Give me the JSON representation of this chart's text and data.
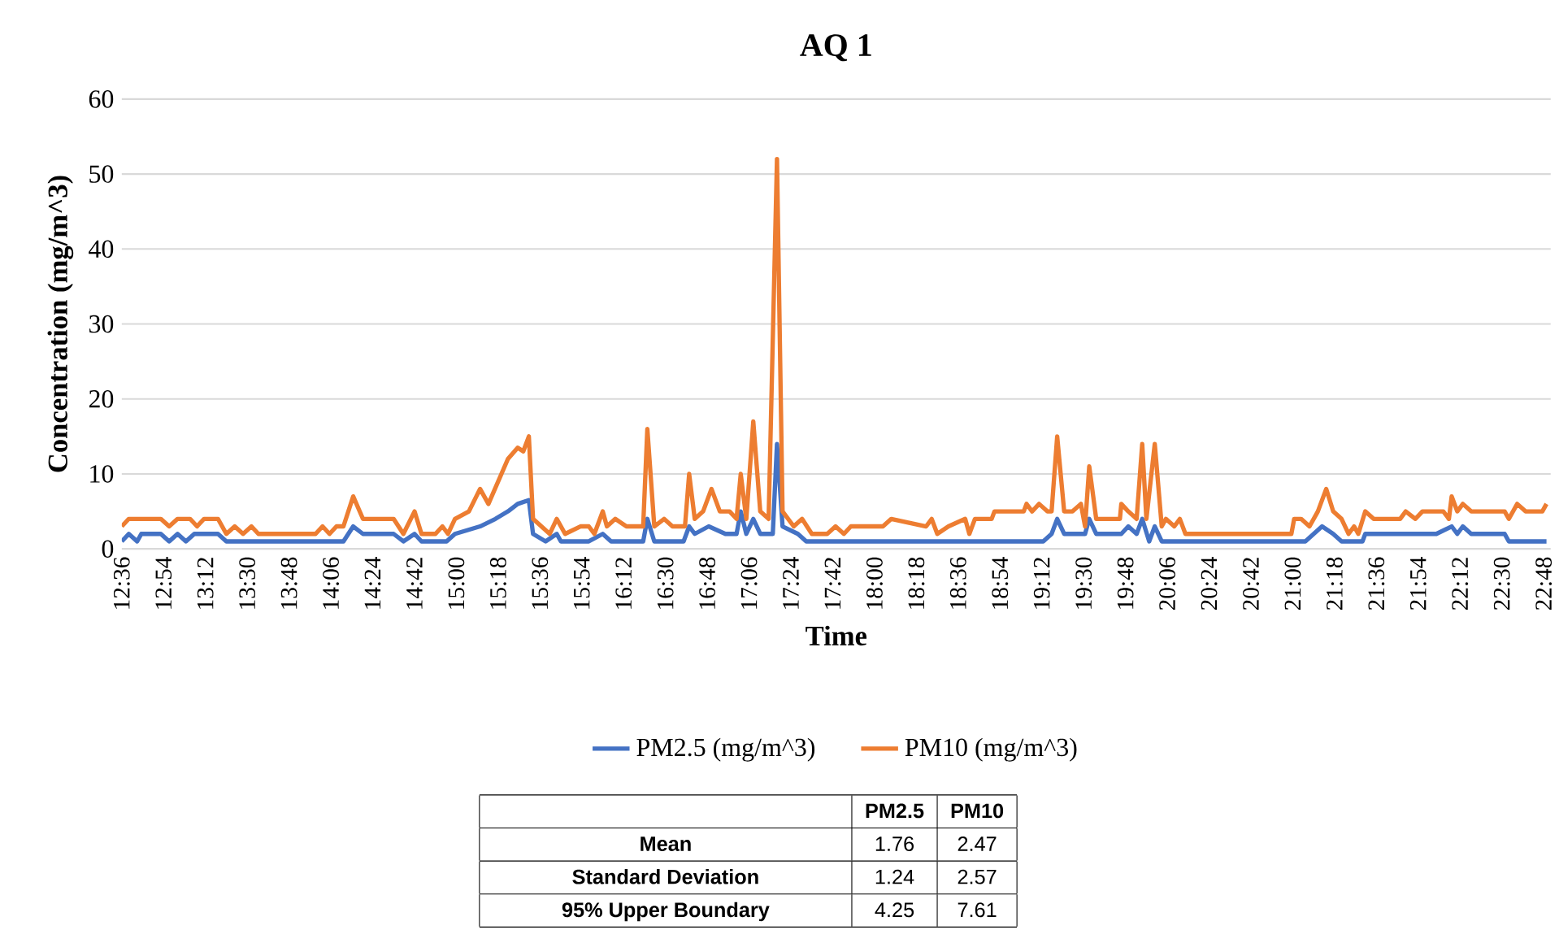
{
  "chart_data": {
    "type": "line",
    "title": "AQ 1",
    "xlabel": "Time",
    "ylabel": "Concentration (mg/m^3)",
    "xlim": [
      12.6,
      22.85
    ],
    "ylim": [
      0,
      60
    ],
    "yticks": [
      0,
      10,
      20,
      30,
      40,
      50,
      60
    ],
    "xticks": [
      {
        "value": 12.6,
        "label": "12:36"
      },
      {
        "value": 12.9,
        "label": "12:54"
      },
      {
        "value": 13.2,
        "label": "13:12"
      },
      {
        "value": 13.5,
        "label": "13:30"
      },
      {
        "value": 13.8,
        "label": "13:48"
      },
      {
        "value": 14.1,
        "label": "14:06"
      },
      {
        "value": 14.4,
        "label": "14:24"
      },
      {
        "value": 14.7,
        "label": "14:42"
      },
      {
        "value": 15.0,
        "label": "15:00"
      },
      {
        "value": 15.3,
        "label": "15:18"
      },
      {
        "value": 15.6,
        "label": "15:36"
      },
      {
        "value": 15.9,
        "label": "15:54"
      },
      {
        "value": 16.2,
        "label": "16:12"
      },
      {
        "value": 16.5,
        "label": "16:30"
      },
      {
        "value": 16.8,
        "label": "16:48"
      },
      {
        "value": 17.1,
        "label": "17:06"
      },
      {
        "value": 17.4,
        "label": "17:24"
      },
      {
        "value": 17.7,
        "label": "17:42"
      },
      {
        "value": 18.0,
        "label": "18:00"
      },
      {
        "value": 18.3,
        "label": "18:18"
      },
      {
        "value": 18.6,
        "label": "18:36"
      },
      {
        "value": 18.9,
        "label": "18:54"
      },
      {
        "value": 19.2,
        "label": "19:12"
      },
      {
        "value": 19.5,
        "label": "19:30"
      },
      {
        "value": 19.8,
        "label": "19:48"
      },
      {
        "value": 20.1,
        "label": "20:06"
      },
      {
        "value": 20.4,
        "label": "20:24"
      },
      {
        "value": 20.7,
        "label": "20:42"
      },
      {
        "value": 21.0,
        "label": "21:00"
      },
      {
        "value": 21.3,
        "label": "21:18"
      },
      {
        "value": 21.6,
        "label": "21:36"
      },
      {
        "value": 21.9,
        "label": "21:54"
      },
      {
        "value": 22.2,
        "label": "22:12"
      },
      {
        "value": 22.5,
        "label": "22:30"
      },
      {
        "value": 22.8,
        "label": "22:48"
      }
    ],
    "grid": "y",
    "legend": "bottom",
    "series": [
      {
        "name": "PM2.5 (mg/m^3)",
        "color": "#4472c4",
        "x": [
          12.6,
          12.65,
          12.71,
          12.74,
          12.88,
          12.94,
          13.0,
          13.06,
          13.12,
          13.29,
          13.35,
          14.19,
          14.26,
          14.33,
          14.55,
          14.62,
          14.7,
          14.75,
          14.93,
          14.99,
          15.17,
          15.28,
          15.37,
          15.44,
          15.52,
          15.55,
          15.64,
          15.72,
          15.75,
          15.95,
          16.05,
          16.11,
          16.34,
          16.37,
          16.42,
          16.63,
          16.67,
          16.71,
          16.81,
          16.93,
          17.01,
          17.04,
          17.08,
          17.13,
          17.18,
          17.27,
          17.3,
          17.34,
          17.45,
          17.51,
          19.21,
          19.27,
          19.31,
          19.36,
          19.51,
          19.54,
          19.59,
          19.77,
          19.82,
          19.88,
          19.92,
          19.97,
          20.01,
          20.06,
          21.09,
          21.21,
          21.29,
          21.35,
          21.5,
          21.52,
          22.03,
          22.14,
          22.18,
          22.22,
          22.28,
          22.52,
          22.55,
          22.82
        ],
        "values": [
          1,
          2,
          1,
          2,
          2,
          1,
          2,
          1,
          2,
          2,
          1,
          1,
          3,
          2,
          2,
          1,
          2,
          1,
          1,
          2,
          3,
          4,
          5,
          6,
          6.5,
          2,
          1,
          2,
          1,
          1,
          2,
          1,
          1,
          4,
          1,
          1,
          3,
          2,
          3,
          2,
          2,
          5,
          2,
          4,
          2,
          2,
          14,
          3,
          2,
          1,
          1,
          2,
          4,
          2,
          2,
          4,
          2,
          2,
          3,
          2,
          4,
          1,
          3,
          1,
          1,
          3,
          2,
          1,
          1,
          2,
          2,
          3,
          2,
          3,
          2,
          2,
          1,
          1
        ]
      },
      {
        "name": "PM10 (mg/m^3)",
        "color": "#ed7d31",
        "x": [
          12.6,
          12.65,
          12.88,
          12.94,
          13.0,
          13.09,
          13.14,
          13.19,
          13.29,
          13.35,
          13.41,
          13.47,
          13.53,
          13.58,
          13.99,
          14.04,
          14.09,
          14.14,
          14.19,
          14.26,
          14.33,
          14.55,
          14.62,
          14.7,
          14.75,
          14.85,
          14.9,
          14.94,
          14.99,
          15.09,
          15.17,
          15.23,
          15.37,
          15.44,
          15.48,
          15.52,
          15.55,
          15.67,
          15.72,
          15.78,
          15.89,
          15.95,
          15.99,
          16.05,
          16.08,
          16.14,
          16.22,
          16.34,
          16.37,
          16.42,
          16.49,
          16.55,
          16.64,
          16.67,
          16.71,
          16.77,
          16.83,
          16.89,
          16.96,
          17.01,
          17.04,
          17.08,
          17.13,
          17.18,
          17.24,
          17.3,
          17.34,
          17.42,
          17.48,
          17.55,
          17.66,
          17.72,
          17.78,
          17.83,
          18.06,
          18.12,
          18.37,
          18.41,
          18.45,
          18.53,
          18.65,
          18.68,
          18.72,
          18.84,
          18.86,
          19.07,
          19.09,
          19.13,
          19.18,
          19.24,
          19.27,
          19.31,
          19.36,
          19.42,
          19.48,
          19.51,
          19.54,
          19.59,
          19.76,
          19.77,
          19.82,
          19.88,
          19.92,
          19.95,
          20.01,
          20.06,
          20.09,
          20.15,
          20.19,
          20.23,
          20.99,
          21.01,
          21.06,
          21.12,
          21.18,
          21.24,
          21.29,
          21.35,
          21.4,
          21.44,
          21.47,
          21.52,
          21.58,
          21.77,
          21.81,
          21.88,
          21.93,
          22.08,
          22.12,
          22.14,
          22.18,
          22.22,
          22.28,
          22.52,
          22.55,
          22.61,
          22.67,
          22.79,
          22.82
        ],
        "values": [
          3,
          4,
          4,
          3,
          4,
          4,
          3,
          4,
          4,
          2,
          3,
          2,
          3,
          2,
          2,
          3,
          2,
          3,
          3,
          7,
          4,
          4,
          2,
          5,
          2,
          2,
          3,
          2,
          4,
          5,
          8,
          6,
          12,
          13.5,
          13,
          15,
          4,
          2,
          4,
          2,
          3,
          3,
          2,
          5,
          3,
          4,
          3,
          3,
          16,
          3,
          4,
          3,
          3,
          10,
          4,
          5,
          8,
          5,
          5,
          4,
          10,
          4,
          17,
          5,
          4,
          52,
          5,
          3,
          4,
          2,
          2,
          3,
          2,
          3,
          3,
          4,
          3,
          4,
          2,
          3,
          4,
          2,
          4,
          4,
          5,
          5,
          6,
          5,
          6,
          5,
          5,
          15,
          5,
          5,
          6,
          3,
          11,
          4,
          4,
          6,
          5,
          4,
          14,
          4,
          14,
          3,
          4,
          3,
          4,
          2,
          2,
          4,
          4,
          3,
          5,
          8,
          5,
          4,
          2,
          3,
          2,
          5,
          4,
          4,
          5,
          4,
          5,
          5,
          4,
          7,
          5,
          6,
          5,
          5,
          4,
          6,
          5,
          5,
          6
        ]
      }
    ],
    "annotations": [
      "PM2.5",
      "PM10",
      "Mean",
      "1.76",
      "2.47",
      "Standard Deviation",
      "1.24",
      "2.57",
      "95% Upper Boundary",
      "4.25",
      "7.61"
    ]
  }
}
